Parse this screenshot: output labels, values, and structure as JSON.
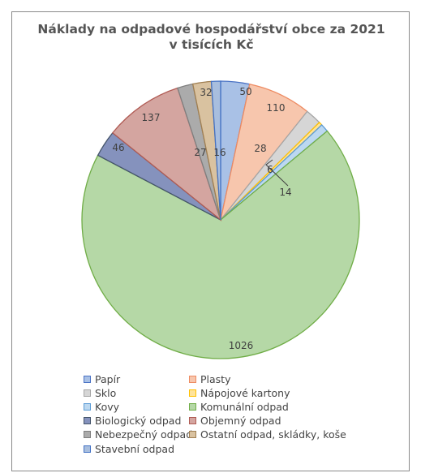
{
  "chart_data": {
    "type": "pie",
    "title": "Náklady na odpadové hospodářství obce za 2021",
    "subtitle": "v tisících Kč",
    "legend_position": "bottom",
    "categories": [
      "Papír",
      "Plasty",
      "Sklo",
      "Nápojové kartony",
      "Kovy",
      "Komunální odpad",
      "Biologický odpad",
      "Objemný odpad",
      "Nebezpečný odpad",
      "Ostatní odpad, skládky, koše",
      "Stavební odpad"
    ],
    "values": [
      50,
      110,
      28,
      6,
      14,
      1026,
      46,
      137,
      27,
      32,
      16
    ],
    "colors": [
      "#a9c1e6",
      "#f7c6ad",
      "#d6d6d6",
      "#ffe49a",
      "#bcd8f0",
      "#b5d8a6",
      "#8592bd",
      "#d4a5a0",
      "#ababab",
      "#d9c2a0",
      "#a8bede"
    ],
    "borders": [
      "#4a72c4",
      "#ee8b62",
      "#a5a5a5",
      "#ffc000",
      "#5b9bd5",
      "#70ad47",
      "#44546a",
      "#b05b54",
      "#7f7f7f",
      "#a07f52",
      "#4472c4"
    ],
    "label_text": [
      "50",
      "110",
      "28",
      "6",
      "14",
      "1026",
      "46",
      "137",
      "27",
      "32",
      "16"
    ]
  }
}
